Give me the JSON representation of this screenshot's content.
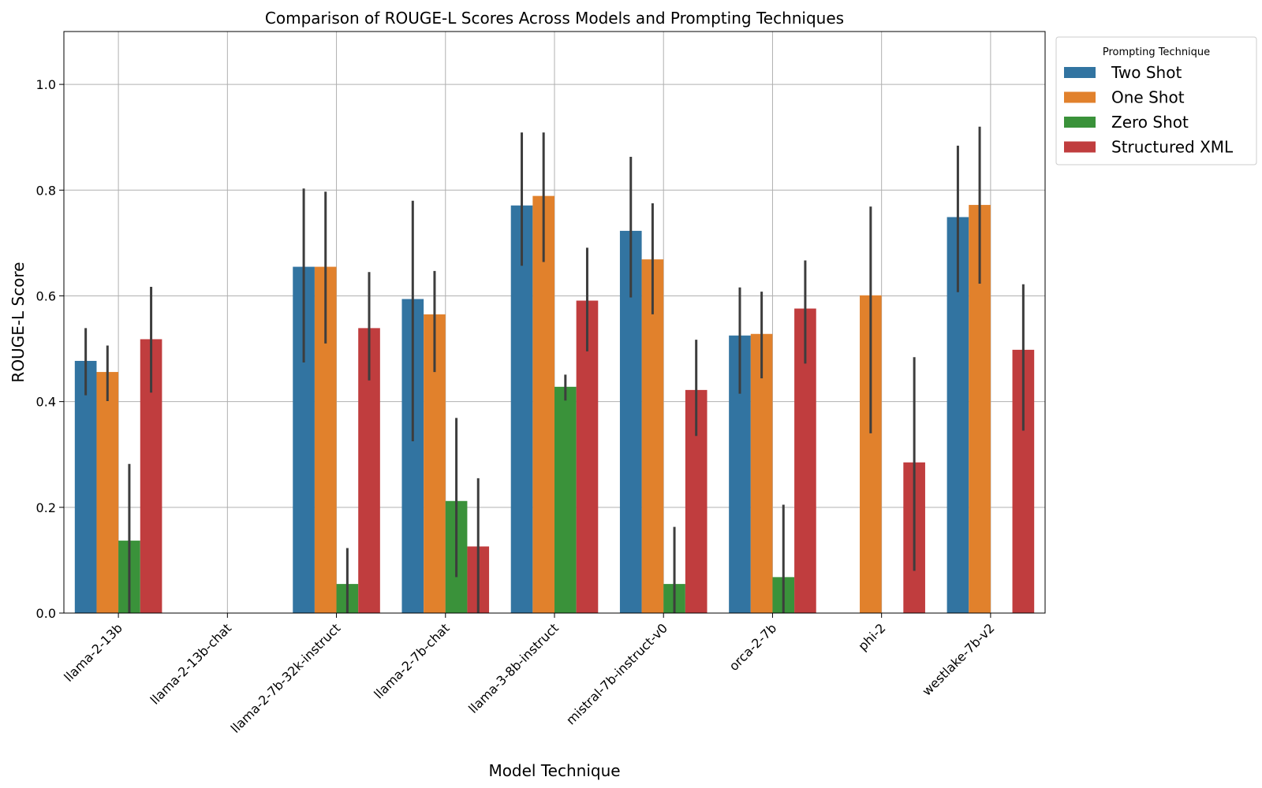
{
  "chart_data": {
    "type": "bar",
    "title": "Comparison of ROUGE-L Scores Across Models and Prompting Techniques",
    "xlabel": "Model Technique",
    "ylabel": "ROUGE-L Score",
    "ylim": [
      0,
      1.1
    ],
    "yticks": [
      0.0,
      0.2,
      0.4,
      0.6,
      0.8,
      1.0
    ],
    "ytick_labels": [
      "0.0",
      "0.2",
      "0.4",
      "0.6",
      "0.8",
      "1.0"
    ],
    "grid": true,
    "legend_title": "Prompting Technique",
    "legend_position": "outside-top-right",
    "categories": [
      "llama-2-13b",
      "llama-2-13b-chat",
      "llama-2-7b-32k-instruct",
      "llama-2-7b-chat",
      "llama-3-8b-instruct",
      "mistral-7b-instruct-v0",
      "orca-2-7b",
      "phi-2",
      "westlake-7b-v2"
    ],
    "series": [
      {
        "name": "Two Shot",
        "color": "#3274a1",
        "values": [
          0.477,
          null,
          0.655,
          0.594,
          0.771,
          0.723,
          0.525,
          null,
          0.749
        ],
        "err_low": [
          0.412,
          null,
          0.474,
          0.325,
          0.657,
          0.597,
          0.415,
          null,
          0.607
        ],
        "err_high": [
          0.539,
          null,
          0.803,
          0.78,
          0.909,
          0.863,
          0.616,
          null,
          0.884
        ]
      },
      {
        "name": "One Shot",
        "color": "#e1812c",
        "values": [
          0.456,
          null,
          0.655,
          0.565,
          0.789,
          0.669,
          0.528,
          0.601,
          0.772
        ],
        "err_low": [
          0.401,
          null,
          0.51,
          0.456,
          0.664,
          0.565,
          0.444,
          0.34,
          0.623
        ],
        "err_high": [
          0.506,
          null,
          0.797,
          0.647,
          0.909,
          0.775,
          0.608,
          0.769,
          0.92
        ]
      },
      {
        "name": "Zero Shot",
        "color": "#3a923a",
        "values": [
          0.137,
          null,
          0.055,
          0.212,
          0.428,
          0.055,
          0.068,
          null,
          null
        ],
        "err_low": [
          0.0,
          null,
          0.0,
          0.068,
          0.402,
          0.0,
          0.0,
          null,
          null
        ],
        "err_high": [
          0.282,
          null,
          0.123,
          0.369,
          0.451,
          0.163,
          0.205,
          null,
          null
        ]
      },
      {
        "name": "Structured XML",
        "color": "#c03d3e",
        "values": [
          0.518,
          null,
          0.539,
          0.126,
          0.591,
          0.422,
          0.576,
          0.285,
          0.498
        ],
        "err_low": [
          0.417,
          null,
          0.44,
          0.0,
          0.495,
          0.335,
          0.472,
          0.08,
          0.345
        ],
        "err_high": [
          0.617,
          null,
          0.645,
          0.255,
          0.691,
          0.517,
          0.667,
          0.484,
          0.622
        ]
      }
    ]
  }
}
